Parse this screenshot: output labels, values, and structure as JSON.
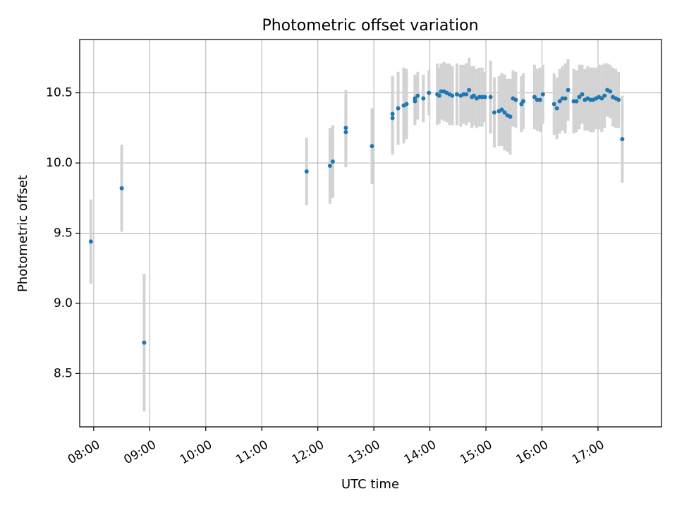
{
  "chart_data": {
    "type": "scatter",
    "title": "Photometric offset variation",
    "xlabel": "UTC time",
    "ylabel": "Photometric offset",
    "xlim": [
      "07:45",
      "18:08"
    ],
    "ylim": [
      8.12,
      10.88
    ],
    "x_ticks": [
      "08:00",
      "09:00",
      "10:00",
      "11:00",
      "12:00",
      "13:00",
      "14:00",
      "15:00",
      "16:00",
      "17:00"
    ],
    "y_ticks": [
      8.5,
      9.0,
      9.5,
      10.0,
      10.5
    ],
    "y_tick_labels": [
      "8.5",
      "9.0",
      "9.5",
      "10.0",
      "10.5"
    ],
    "grid": true,
    "colors": {
      "marker": "#1f77b4",
      "errorbar": "#d3d3d3",
      "grid": "#b0b0b0"
    },
    "series": [
      {
        "x": [
          "07:57",
          "08:30",
          "08:54",
          "11:48",
          "12:13",
          "12:16",
          "12:30",
          "12:30",
          "12:58",
          "13:20",
          "13:20",
          "13:26",
          "13:32",
          "13:35",
          "13:44",
          "13:44",
          "13:47",
          "13:53",
          "13:59",
          "14:08",
          "14:10",
          "14:12",
          "14:15",
          "14:18",
          "14:21",
          "14:24",
          "14:29",
          "14:33",
          "14:36",
          "14:39",
          "14:42",
          "14:45",
          "14:47",
          "14:50",
          "14:53",
          "14:56",
          "14:59",
          "15:05",
          "15:09",
          "15:14",
          "15:17",
          "15:20",
          "15:23",
          "15:26",
          "15:29",
          "15:32",
          "15:38",
          "15:40",
          "15:52",
          "15:55",
          "15:58",
          "16:01",
          "16:13",
          "16:16",
          "16:19",
          "16:22",
          "16:25",
          "16:28",
          "16:34",
          "16:37",
          "16:40",
          "16:43",
          "16:46",
          "16:49",
          "16:52",
          "16:55",
          "16:58",
          "17:01",
          "17:04",
          "17:07",
          "17:10",
          "17:13",
          "17:16",
          "17:19",
          "17:22",
          "17:26"
        ],
        "y": [
          9.44,
          9.82,
          8.72,
          9.94,
          9.98,
          10.01,
          10.25,
          10.22,
          10.12,
          10.35,
          10.32,
          10.39,
          10.41,
          10.42,
          10.44,
          10.46,
          10.48,
          10.46,
          10.5,
          10.49,
          10.48,
          10.51,
          10.51,
          10.5,
          10.49,
          10.48,
          10.49,
          10.48,
          10.49,
          10.49,
          10.52,
          10.47,
          10.48,
          10.46,
          10.47,
          10.47,
          10.47,
          10.47,
          10.36,
          10.37,
          10.38,
          10.36,
          10.34,
          10.33,
          10.46,
          10.45,
          10.42,
          10.44,
          10.47,
          10.45,
          10.45,
          10.49,
          10.42,
          10.39,
          10.44,
          10.46,
          10.46,
          10.52,
          10.44,
          10.44,
          10.47,
          10.49,
          10.45,
          10.46,
          10.45,
          10.45,
          10.46,
          10.47,
          10.46,
          10.48,
          10.52,
          10.51,
          10.47,
          10.46,
          10.45,
          10.17
        ],
        "yerr": [
          0.3,
          0.31,
          0.49,
          0.24,
          0.27,
          0.26,
          0.27,
          0.25,
          0.27,
          0.27,
          0.26,
          0.26,
          0.27,
          0.25,
          0.17,
          0.17,
          0.17,
          0.17,
          0.16,
          0.22,
          0.2,
          0.2,
          0.21,
          0.21,
          0.22,
          0.21,
          0.22,
          0.22,
          0.21,
          0.22,
          0.23,
          0.22,
          0.21,
          0.21,
          0.21,
          0.21,
          0.18,
          0.26,
          0.25,
          0.25,
          0.26,
          0.27,
          0.26,
          0.27,
          0.2,
          0.2,
          0.2,
          0.2,
          0.23,
          0.22,
          0.23,
          0.21,
          0.22,
          0.22,
          0.23,
          0.23,
          0.25,
          0.22,
          0.23,
          0.22,
          0.23,
          0.21,
          0.22,
          0.23,
          0.23,
          0.23,
          0.22,
          0.23,
          0.24,
          0.23,
          0.19,
          0.19,
          0.21,
          0.21,
          0.2,
          0.31
        ]
      }
    ]
  }
}
